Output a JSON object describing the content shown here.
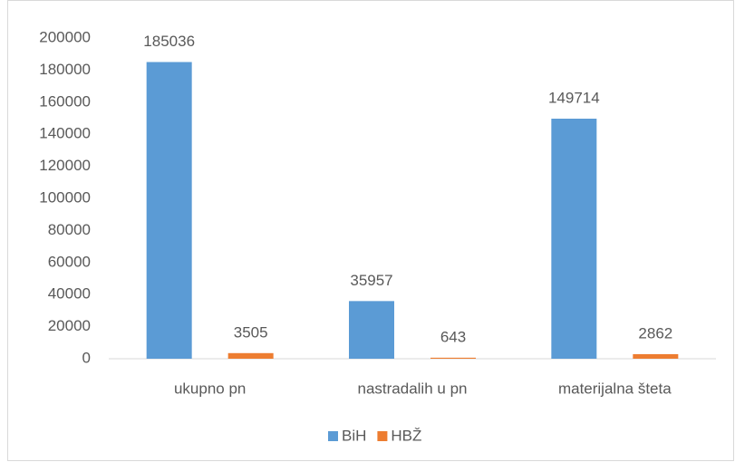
{
  "chart_data": {
    "type": "bar",
    "categories": [
      "ukupno pn",
      "nastradalih u pn",
      "materijalna šteta"
    ],
    "series": [
      {
        "name": "BiH",
        "color": "#5b9bd5",
        "values": [
          185036,
          35957,
          149714
        ]
      },
      {
        "name": "HBŽ",
        "color": "#ed7d31",
        "values": [
          3505,
          643,
          2862
        ]
      }
    ],
    "ylim": [
      0,
      200000
    ],
    "yticks": [
      0,
      20000,
      40000,
      60000,
      80000,
      100000,
      120000,
      140000,
      160000,
      180000,
      200000
    ],
    "grid": false,
    "legend": "bottom",
    "data_labels": true
  }
}
